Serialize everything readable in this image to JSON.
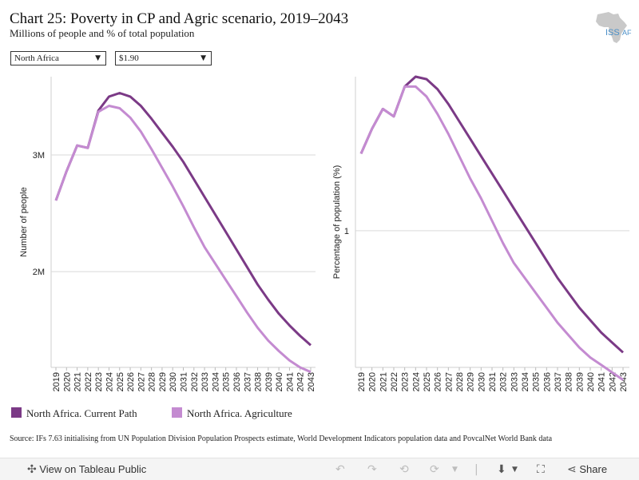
{
  "header": {
    "title": "Chart 25: Poverty in CP and Agric scenario, 2019–2043",
    "subtitle": "Millions of people and % of total population",
    "logo_text": "ISS",
    "logo_text2": "AF"
  },
  "filters": {
    "region": "North Africa",
    "threshold": "$1.90"
  },
  "legend": [
    {
      "label": "North Africa. Current Path",
      "color": "#7b3a86"
    },
    {
      "label": "North Africa. Agriculture",
      "color": "#c48bd1"
    }
  ],
  "source": "Source: IFs 7.63 initialising from UN Population Division Population Prospects estimate, World Development Indicators population data and PovcalNet World Bank data",
  "footer": {
    "view_label": "View on Tableau Public",
    "share_label": "Share"
  },
  "chart_data": [
    {
      "type": "line",
      "ylabel": "Number of people",
      "ytick_values": [
        2,
        3
      ],
      "ytick_labels": [
        "2M",
        "3M"
      ],
      "ylim": [
        1.18,
        3.67
      ],
      "x": [
        2019,
        2020,
        2021,
        2022,
        2023,
        2024,
        2025,
        2026,
        2027,
        2028,
        2029,
        2030,
        2031,
        2032,
        2033,
        2034,
        2035,
        2036,
        2037,
        2038,
        2039,
        2040,
        2041,
        2042,
        2043
      ],
      "series": [
        {
          "name": "North Africa. Current Path",
          "color": "#7b3a86",
          "values": [
            2.61,
            2.86,
            3.08,
            3.06,
            3.38,
            3.5,
            3.53,
            3.5,
            3.42,
            3.31,
            3.19,
            3.07,
            2.94,
            2.79,
            2.64,
            2.49,
            2.34,
            2.19,
            2.04,
            1.89,
            1.76,
            1.64,
            1.54,
            1.45,
            1.37
          ]
        },
        {
          "name": "North Africa. Agriculture",
          "color": "#c48bd1",
          "values": [
            2.61,
            2.86,
            3.08,
            3.06,
            3.37,
            3.42,
            3.4,
            3.32,
            3.2,
            3.05,
            2.89,
            2.73,
            2.56,
            2.38,
            2.21,
            2.07,
            1.93,
            1.79,
            1.65,
            1.52,
            1.41,
            1.32,
            1.24,
            1.18,
            1.14
          ]
        }
      ]
    },
    {
      "type": "line",
      "ylabel": "Percentage of population (%)",
      "ytick_values": [
        1
      ],
      "ytick_labels": [
        "1"
      ],
      "ylim": [
        0.45,
        1.62
      ],
      "x": [
        2019,
        2020,
        2021,
        2022,
        2023,
        2024,
        2025,
        2026,
        2027,
        2028,
        2029,
        2030,
        2031,
        2032,
        2033,
        2034,
        2035,
        2036,
        2037,
        2038,
        2039,
        2040,
        2041,
        2042,
        2043
      ],
      "series": [
        {
          "name": "North Africa. Current Path",
          "color": "#7b3a86",
          "values": [
            1.31,
            1.41,
            1.49,
            1.46,
            1.58,
            1.62,
            1.61,
            1.57,
            1.51,
            1.44,
            1.37,
            1.3,
            1.23,
            1.16,
            1.09,
            1.02,
            0.95,
            0.88,
            0.81,
            0.75,
            0.69,
            0.64,
            0.59,
            0.55,
            0.51
          ]
        },
        {
          "name": "North Africa. Agriculture",
          "color": "#c48bd1",
          "values": [
            1.31,
            1.41,
            1.49,
            1.46,
            1.58,
            1.58,
            1.54,
            1.47,
            1.39,
            1.3,
            1.21,
            1.13,
            1.04,
            0.95,
            0.87,
            0.81,
            0.75,
            0.69,
            0.63,
            0.58,
            0.53,
            0.49,
            0.46,
            0.43,
            0.4
          ]
        }
      ]
    }
  ]
}
